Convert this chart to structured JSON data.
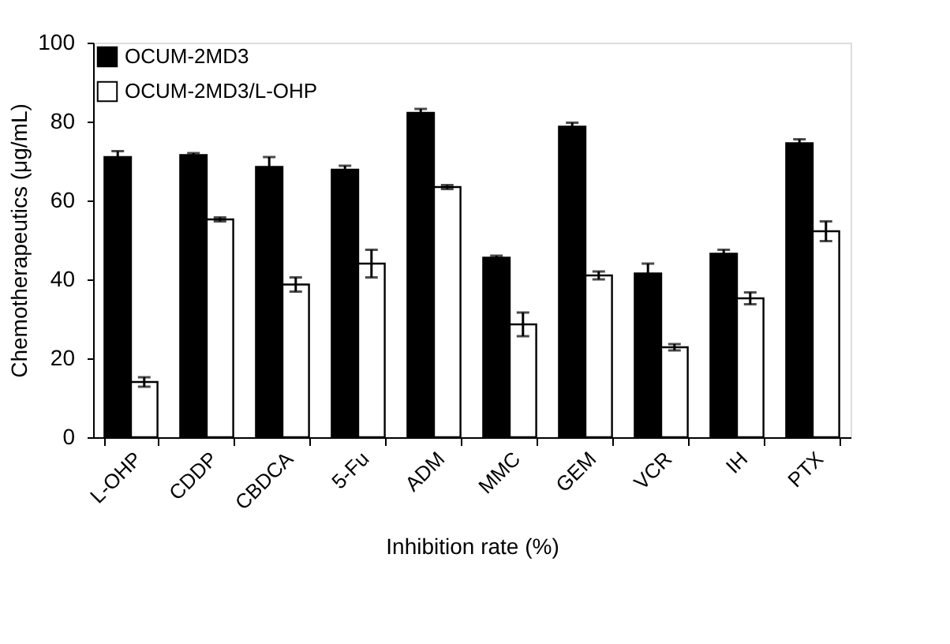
{
  "chart_data": {
    "type": "bar",
    "xlabel": "Inhibition rate (%)",
    "ylabel": "Chemotherapeutics (μg/mL)",
    "categories": [
      "L-OHP",
      "CDDP",
      "CBDCA",
      "5-Fu",
      "ADM",
      "MMC",
      "GEM",
      "VCR",
      "IH",
      "PTX"
    ],
    "series": [
      {
        "name": "OCUM-2MD3",
        "color": "#000000",
        "values": [
          71,
          71.5,
          68.5,
          67.8,
          82.2,
          45.5,
          78.7,
          41.5,
          46.5,
          74.5
        ],
        "errors": [
          1.5,
          0.5,
          2.5,
          1,
          1,
          0.5,
          1,
          2.5,
          1,
          1
        ]
      },
      {
        "name": "OCUM-2MD3/L-OHP",
        "color": "#ffffff",
        "values": [
          14,
          55.2,
          38.7,
          44,
          63.4,
          28.6,
          41,
          22.8,
          35.2,
          52.2
        ],
        "errors": [
          1.2,
          0.5,
          1.8,
          3.5,
          0.5,
          3,
          1,
          0.8,
          1.5,
          2.5
        ]
      }
    ],
    "ylim": [
      0,
      100
    ],
    "yticks": [
      0,
      20,
      40,
      60,
      80,
      100
    ],
    "grid": false,
    "legend": "top left"
  }
}
